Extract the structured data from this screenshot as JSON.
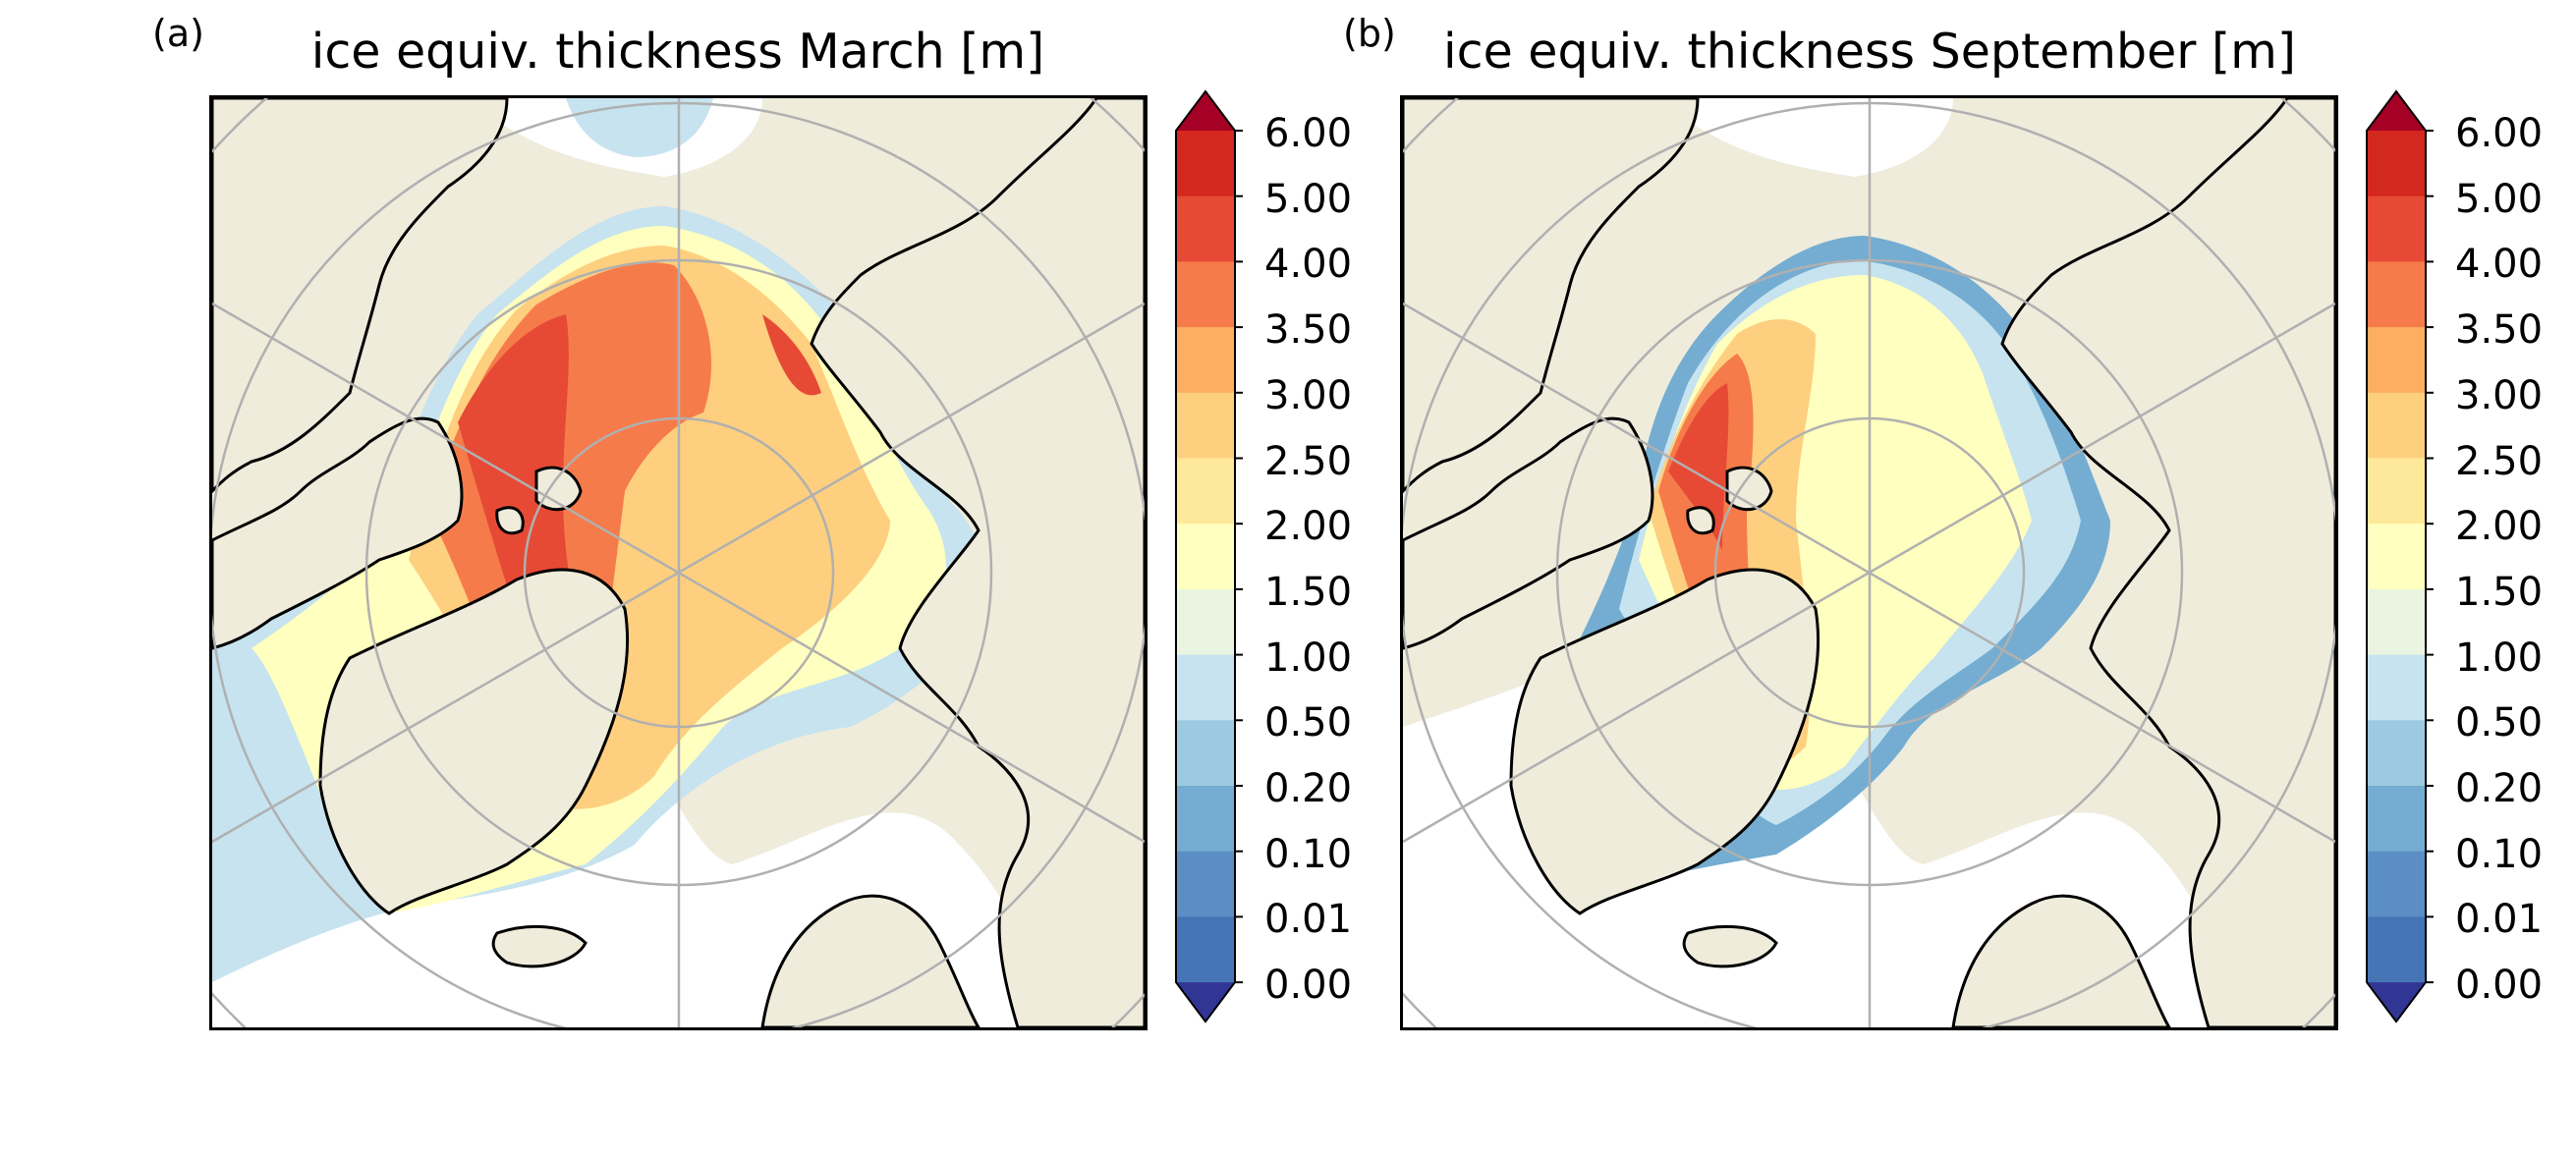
{
  "panels": [
    {
      "label": "(a)",
      "title": "ice equiv. thickness March [m]",
      "month": "March"
    },
    {
      "label": "(b)",
      "title": "ice equiv. thickness September [m]",
      "month": "September"
    }
  ],
  "colorbar": {
    "ticks": [
      "0.00",
      "0.01",
      "0.10",
      "0.20",
      "0.50",
      "1.00",
      "1.50",
      "2.00",
      "2.50",
      "3.00",
      "3.50",
      "4.00",
      "5.00",
      "6.00"
    ],
    "colors": [
      "#4575b4",
      "#5b8ec2",
      "#74add1",
      "#9ecae1",
      "#c6e3ef",
      "#e9f5e1",
      "#ffffbf",
      "#fee99a",
      "#fdcf7f",
      "#fdae61",
      "#f67b4a",
      "#e64a35",
      "#d3281e"
    ],
    "under_color": "#313695",
    "over_color": "#a50026",
    "extend": "both"
  },
  "colors": {
    "land": "#efecdc",
    "ocean": "#ffffff",
    "graticule": "#b0b0b0",
    "coastline": "#000000"
  }
}
